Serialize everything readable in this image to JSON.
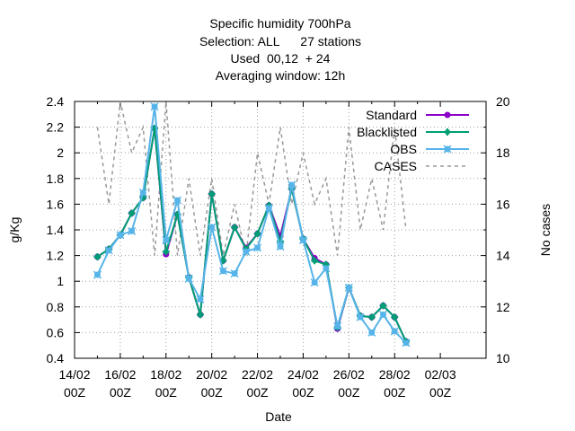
{
  "chart_data": {
    "type": "line",
    "title_lines": [
      "Specific humidity 700hPa",
      "Selection: ALL      27 stations",
      "Used  00,12  + 24",
      "Averaging window: 12h"
    ],
    "xlabel": "Date",
    "ylabel": "g/Kg",
    "y2label": "No cases",
    "xlim": [
      0,
      18
    ],
    "ylim": [
      0.4,
      2.4
    ],
    "y2lim": [
      10,
      20
    ],
    "x_ticks": [
      {
        "pos": 0,
        "line1": "14/02",
        "line2": "00Z"
      },
      {
        "pos": 2,
        "line1": "16/02",
        "line2": "00Z"
      },
      {
        "pos": 4,
        "line1": "18/02",
        "line2": "00Z"
      },
      {
        "pos": 6,
        "line1": "20/02",
        "line2": "00Z"
      },
      {
        "pos": 8,
        "line1": "22/02",
        "line2": "00Z"
      },
      {
        "pos": 10,
        "line1": "24/02",
        "line2": "00Z"
      },
      {
        "pos": 12,
        "line1": "26/02",
        "line2": "00Z"
      },
      {
        "pos": 14,
        "line1": "28/02",
        "line2": "00Z"
      },
      {
        "pos": 16,
        "line1": "02/03",
        "line2": "00Z"
      }
    ],
    "y_ticks": [
      "0.4",
      "0.6",
      "0.8",
      "1",
      "1.2",
      "1.4",
      "1.6",
      "1.8",
      "2",
      "2.2",
      "2.4"
    ],
    "y2_ticks": [
      "10",
      "12",
      "14",
      "16",
      "18",
      "20"
    ],
    "grid": true,
    "legend_position": "top-right",
    "x": [
      1,
      1.5,
      2,
      2.5,
      3,
      3.5,
      4,
      4.5,
      5,
      5.5,
      6,
      6.5,
      7,
      7.5,
      8,
      8.5,
      9,
      9.5,
      10,
      10.5,
      11,
      11.5,
      12,
      12.5,
      13,
      13.5,
      14,
      14.5
    ],
    "series": [
      {
        "name": "Standard",
        "color": "#8b00c8",
        "marker": "circle",
        "axis": "y",
        "values": [
          1.19,
          1.25,
          1.36,
          1.53,
          1.65,
          2.19,
          1.21,
          1.52,
          1.03,
          0.74,
          1.68,
          1.16,
          1.42,
          1.26,
          1.37,
          1.59,
          1.35,
          1.72,
          1.33,
          1.18,
          1.13,
          0.63,
          0.95,
          0.73,
          0.72,
          0.81,
          0.72,
          0.53
        ]
      },
      {
        "name": "Blacklisted",
        "color": "#009e73",
        "marker": "cross",
        "axis": "y",
        "values": [
          1.19,
          1.25,
          1.36,
          1.53,
          1.65,
          2.19,
          1.23,
          1.52,
          1.03,
          0.74,
          1.68,
          1.16,
          1.42,
          1.25,
          1.37,
          1.59,
          1.31,
          1.72,
          1.33,
          1.16,
          1.13,
          0.64,
          0.95,
          0.73,
          0.72,
          0.81,
          0.72,
          0.53
        ]
      },
      {
        "name": "OBS",
        "color": "#56b4e9",
        "marker": "star",
        "axis": "y",
        "values": [
          1.05,
          1.24,
          1.36,
          1.39,
          1.69,
          2.36,
          1.32,
          1.63,
          1.02,
          0.86,
          1.42,
          1.08,
          1.06,
          1.23,
          1.26,
          1.57,
          1.27,
          1.75,
          1.32,
          0.99,
          1.1,
          0.65,
          0.95,
          0.72,
          0.6,
          0.74,
          0.61,
          0.52
        ]
      },
      {
        "name": "CASES",
        "color": "#999999",
        "dash": "4,4",
        "axis": "y2",
        "values": [
          19,
          16,
          20,
          18,
          19,
          14,
          20,
          14,
          17,
          14,
          17,
          14,
          16,
          14,
          18,
          16,
          19,
          16,
          18,
          16,
          17,
          14,
          19,
          15,
          17,
          15,
          19,
          15
        ]
      }
    ]
  }
}
